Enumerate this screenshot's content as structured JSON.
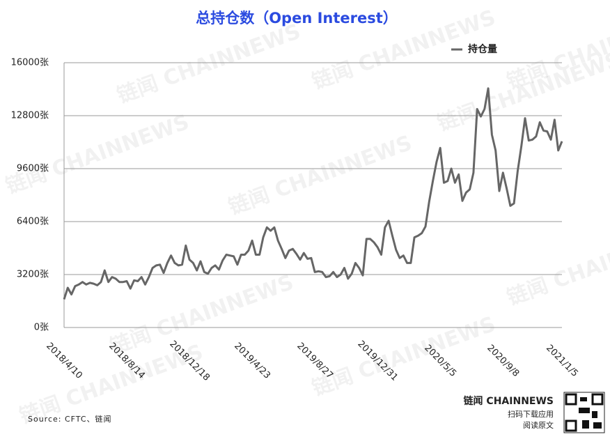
{
  "chart_data": {
    "type": "line",
    "title": "总持仓数（Open Interest）",
    "source": "Source: CFTC、链闻",
    "brand": "链闻 CHAINNEWS",
    "brand_lines": [
      "扫码下载应用",
      "阅读原文"
    ],
    "watermark": "链闻 CHAINNEWS",
    "categories": [
      "2018/4/10",
      null,
      null,
      null,
      null,
      null,
      null,
      null,
      null,
      null,
      null,
      null,
      null,
      null,
      null,
      null,
      null,
      "2018/8/14",
      null,
      null,
      null,
      null,
      null,
      null,
      null,
      null,
      null,
      null,
      null,
      null,
      null,
      null,
      null,
      null,
      "2018/12/18",
      null,
      null,
      null,
      null,
      null,
      null,
      null,
      null,
      null,
      null,
      null,
      null,
      null,
      null,
      null,
      null,
      "2019/4/23",
      null,
      null,
      null,
      null,
      null,
      null,
      null,
      null,
      null,
      null,
      null,
      null,
      null,
      null,
      null,
      null,
      "2019/8/27",
      null,
      null,
      null,
      null,
      null,
      null,
      null,
      null,
      null,
      null,
      null,
      null,
      null,
      null,
      null,
      null,
      "2019/12/31",
      null,
      null,
      null,
      null,
      null,
      null,
      null,
      null,
      null,
      null,
      null,
      null,
      null,
      null,
      null,
      null,
      "2020/5/5",
      null,
      null,
      null,
      null,
      null,
      null,
      null,
      null,
      null,
      null,
      null,
      null,
      null,
      null,
      null,
      null,
      "2020/9/8",
      null,
      null,
      null,
      null,
      null,
      null,
      null,
      null,
      null,
      null,
      null,
      null,
      null,
      null,
      null,
      "2021/1/5"
    ],
    "series": [
      {
        "name": "持仓量",
        "color": "#666666",
        "values": [
          1700,
          2400,
          2000,
          2500,
          2600,
          2750,
          2600,
          2700,
          2650,
          2550,
          2750,
          3450,
          2750,
          3050,
          2950,
          2750,
          2750,
          2800,
          2350,
          2850,
          2800,
          3050,
          2600,
          3050,
          3600,
          3750,
          3800,
          3300,
          3900,
          4350,
          3900,
          3750,
          3800,
          4950,
          4100,
          3900,
          3450,
          4000,
          3350,
          3250,
          3600,
          3750,
          3500,
          4050,
          4400,
          4350,
          4300,
          3800,
          4400,
          4400,
          4650,
          5250,
          4400,
          4400,
          5450,
          6050,
          5850,
          6050,
          5250,
          4750,
          4200,
          4650,
          4750,
          4450,
          4100,
          4500,
          4150,
          4200,
          3350,
          3400,
          3350,
          3050,
          3100,
          3350,
          3050,
          3200,
          3600,
          2950,
          3250,
          3900,
          3600,
          3150,
          5350,
          5350,
          5150,
          4850,
          4400,
          6050,
          6450,
          5550,
          4700,
          4200,
          4350,
          3900,
          3900,
          5450,
          5550,
          5700,
          6100,
          7600,
          8850,
          10000,
          10850,
          8750,
          8850,
          9600,
          8750,
          9250,
          7650,
          8150,
          8350,
          9350,
          13200,
          12750,
          13200,
          14450,
          11650,
          10700,
          8250,
          9350,
          8400,
          7350,
          7500,
          9450,
          10950,
          12650,
          11300,
          11350,
          11550,
          12400,
          11900,
          11850,
          11350,
          12550,
          10700,
          11250
        ]
      }
    ],
    "ylim": [
      0,
      16000
    ],
    "yticks": [
      {
        "value": 0,
        "label": "0张"
      },
      {
        "value": 3200,
        "label": "3200张"
      },
      {
        "value": 6400,
        "label": "6400张"
      },
      {
        "value": 9600,
        "label": "9600张"
      },
      {
        "value": 12800,
        "label": "12800张"
      },
      {
        "value": 16000,
        "label": "16000张"
      }
    ],
    "grid": true
  }
}
